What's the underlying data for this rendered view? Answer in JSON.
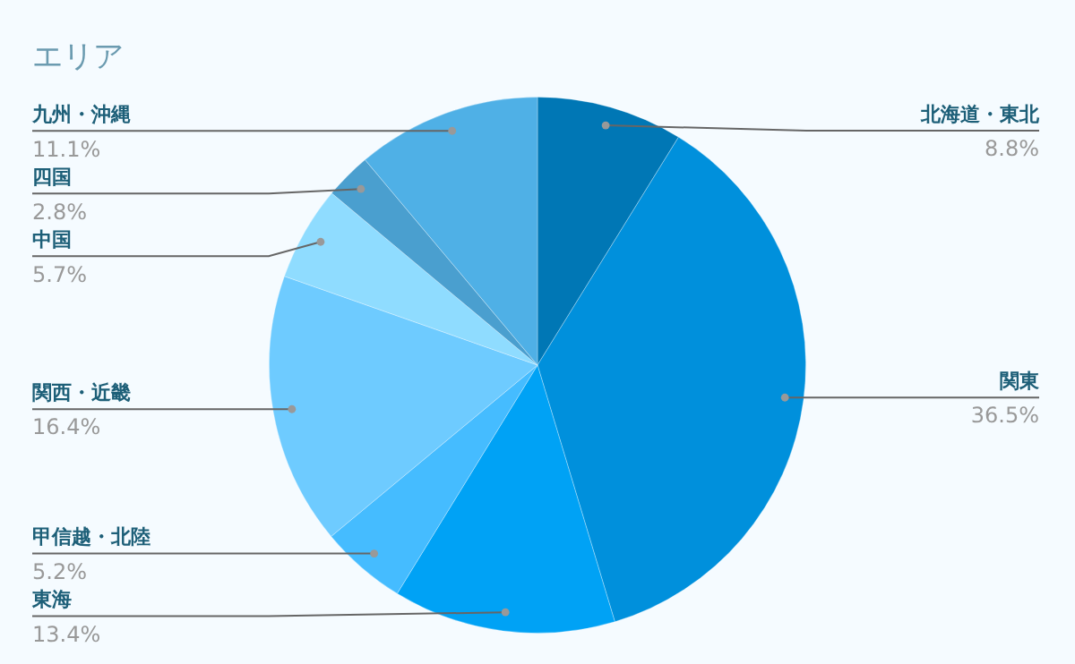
{
  "chart_data": {
    "type": "pie",
    "title": "エリア",
    "categories": [
      "北海道・東北",
      "関東",
      "東海",
      "甲信越・北陸",
      "関西・近畿",
      "中国",
      "四国",
      "九州・沖縄"
    ],
    "values": [
      8.8,
      36.5,
      13.4,
      5.2,
      16.4,
      5.7,
      2.8,
      11.1
    ],
    "colors": [
      "#0077b5",
      "#0090dc",
      "#00a2f5",
      "#45bcff",
      "#6ecbff",
      "#8fdcff",
      "#4a9fcf",
      "#4fb0e6"
    ],
    "value_labels": [
      "8.8%",
      "36.5%",
      "13.4%",
      "5.2%",
      "16.4%",
      "5.7%",
      "2.8%",
      "11.1%"
    ],
    "legend": false
  }
}
